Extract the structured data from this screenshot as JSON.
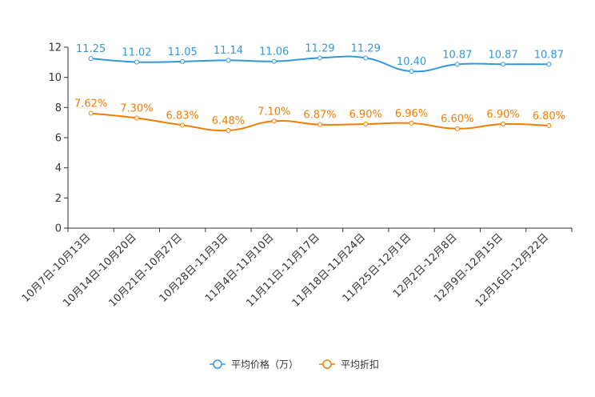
{
  "chart_data": {
    "type": "line",
    "title": "",
    "xlabel": "",
    "ylabel": "",
    "ylim": [
      0,
      12
    ],
    "yticks": [
      0,
      2,
      4,
      6,
      8,
      10,
      12
    ],
    "grid": false,
    "legend_position": "bottom-center",
    "categories": [
      "10月7日-10月13日",
      "10月14日-10月20日",
      "10月21日-10月27日",
      "10月28日-11月3日",
      "11月4日-11月10日",
      "11月11日-11月17日",
      "11月18日-11月24日",
      "11月25日-12月1日",
      "12月2日-12月8日",
      "12月9日-12月15日",
      "12月16日-12月22日"
    ],
    "series": [
      {
        "name": "平均价格（万）",
        "color": "#3398DB",
        "values": [
          11.25,
          11.02,
          11.05,
          11.14,
          11.06,
          11.29,
          11.29,
          10.4,
          10.87,
          10.87,
          10.87
        ],
        "labels": [
          "11.25",
          "11.02",
          "11.05",
          "11.14",
          "11.06",
          "11.29",
          "11.29",
          "10.40",
          "10.87",
          "10.87",
          "10.87"
        ]
      },
      {
        "name": "平均折扣",
        "color": "#F57C00",
        "values": [
          7.62,
          7.3,
          6.83,
          6.48,
          7.1,
          6.87,
          6.9,
          6.96,
          6.6,
          6.9,
          6.8
        ],
        "labels": [
          "7.62%",
          "7.30%",
          "6.83%",
          "6.48%",
          "7.10%",
          "6.87%",
          "6.90%",
          "6.96%",
          "6.60%",
          "6.90%",
          "6.80%"
        ]
      }
    ]
  }
}
